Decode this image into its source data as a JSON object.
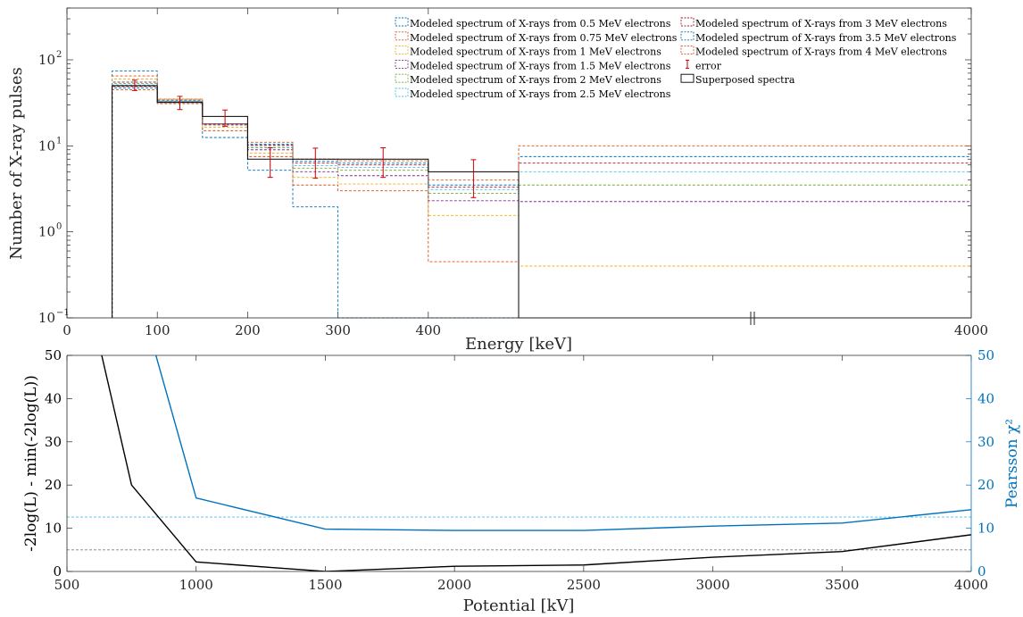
{
  "chart_data": [
    {
      "type": "line",
      "subtype": "step-histogram",
      "xlabel": "Energy [keV]",
      "ylabel": "Number of X-ray pulses",
      "yscale": "log",
      "ylim": [
        0.1,
        400
      ],
      "x_ticks": [
        "0",
        "100",
        "200",
        "300",
        "400",
        "4000"
      ],
      "y_tick_powers": [
        -1,
        0,
        1,
        2
      ],
      "y_tick_base": "10",
      "axis_break": "//",
      "bin_edges": [
        50,
        100,
        150,
        200,
        250,
        300,
        400,
        500,
        4000
      ],
      "legend_position": "top-right",
      "series": [
        {
          "name": "Modeled spectrum of X-rays from 0.5 MeV electrons",
          "color": "#0072BD",
          "style": "dashed",
          "values": [
            74,
            33,
            12.5,
            5.2,
            1.95,
            0.1,
            0.1,
            0.1
          ]
        },
        {
          "name": "Modeled spectrum of X-rays from 0.75 MeV electrons",
          "color": "#D95319",
          "style": "dashed",
          "values": [
            65,
            35,
            15,
            7.5,
            3.5,
            3.0,
            0.45,
            0.1
          ]
        },
        {
          "name": "Modeled spectrum of X-rays from 1 MeV electrons",
          "color": "#EDB120",
          "style": "dashed",
          "values": [
            60,
            35,
            16.5,
            8.2,
            4.3,
            3.6,
            1.55,
            0.4
          ]
        },
        {
          "name": "Modeled spectrum of X-rays from 1.5 MeV electrons",
          "color": "#7E2F8E",
          "style": "dashed",
          "values": [
            55,
            34,
            17.5,
            9.0,
            5.0,
            4.5,
            2.3,
            2.25
          ]
        },
        {
          "name": "Modeled spectrum of X-rays from 2 MeV electrons",
          "color": "#77AC30",
          "style": "dashed",
          "values": [
            53,
            33,
            18,
            9.5,
            5.5,
            5.2,
            2.8,
            3.5
          ]
        },
        {
          "name": "Modeled spectrum of X-rays from 2.5 MeV electrons",
          "color": "#4DBEEE",
          "style": "dashed",
          "values": [
            51,
            33,
            18,
            9.8,
            5.9,
            5.6,
            3.1,
            5.0
          ]
        },
        {
          "name": "Modeled spectrum of X-rays from 3 MeV electrons",
          "color": "#A2142F",
          "style": "dashed",
          "values": [
            49,
            32,
            18,
            10.2,
            6.3,
            6.0,
            3.3,
            6.3
          ]
        },
        {
          "name": "Modeled spectrum of X-rays from 3.5 MeV electrons",
          "color": "#0072BD",
          "style": "dashed",
          "values": [
            47,
            32,
            18,
            10.5,
            6.6,
            6.3,
            3.5,
            7.5
          ]
        },
        {
          "name": "Modeled spectrum of X-rays from 4 MeV electrons",
          "color": "#D95319",
          "style": "dashed",
          "values": [
            45,
            31,
            18,
            11,
            7.0,
            6.7,
            4.0,
            10.0
          ]
        },
        {
          "name": "Superposed spectra",
          "color": "#000000",
          "style": "solid",
          "values": [
            50,
            32,
            22,
            7.0,
            7.0,
            7.0,
            5.0,
            0.1
          ]
        }
      ],
      "error": {
        "name": "error",
        "color": "#CC0000",
        "x": [
          75,
          125,
          175,
          225,
          275,
          350,
          450
        ],
        "y": [
          51,
          32,
          21.5,
          6.9,
          6.8,
          6.9,
          4.7
        ],
        "err": [
          7.0,
          5.6,
          4.6,
          2.6,
          2.6,
          2.6,
          2.2
        ]
      }
    },
    {
      "type": "line",
      "xlabel": "Potential [kV]",
      "ylabel_left": "-2log(L) - min(-2log(L))",
      "ylabel_right": "Pearsson χ²",
      "xlim": [
        500,
        4000
      ],
      "ylim": [
        0,
        50
      ],
      "x_ticks": [
        500,
        1000,
        1500,
        2000,
        2500,
        3000,
        3500,
        4000
      ],
      "y_ticks": [
        0,
        10,
        20,
        30,
        40,
        50
      ],
      "series": [
        {
          "axis": "left",
          "color": "#000000",
          "x": [
            500,
            750,
            1000,
            1500,
            2000,
            2500,
            3000,
            3500,
            4000
          ],
          "y": [
            85,
            20,
            2.2,
            0,
            1.2,
            1.5,
            3.3,
            4.6,
            8.5
          ]
        },
        {
          "axis": "right",
          "color": "#0072BD",
          "x": [
            500,
            750,
            1000,
            1500,
            2000,
            2500,
            3000,
            3500,
            4000
          ],
          "y": [
            150,
            70,
            17,
            9.8,
            9.5,
            9.5,
            10.5,
            11.2,
            14.3
          ]
        }
      ],
      "reference_lines": [
        {
          "axis": "left",
          "y": 5,
          "color": "#7f7f7f",
          "style": "dashed"
        },
        {
          "axis": "right",
          "y": 12.6,
          "color": "#4DBEEE",
          "style": "dashed"
        }
      ],
      "right_axis_color": "#0072BD"
    }
  ]
}
